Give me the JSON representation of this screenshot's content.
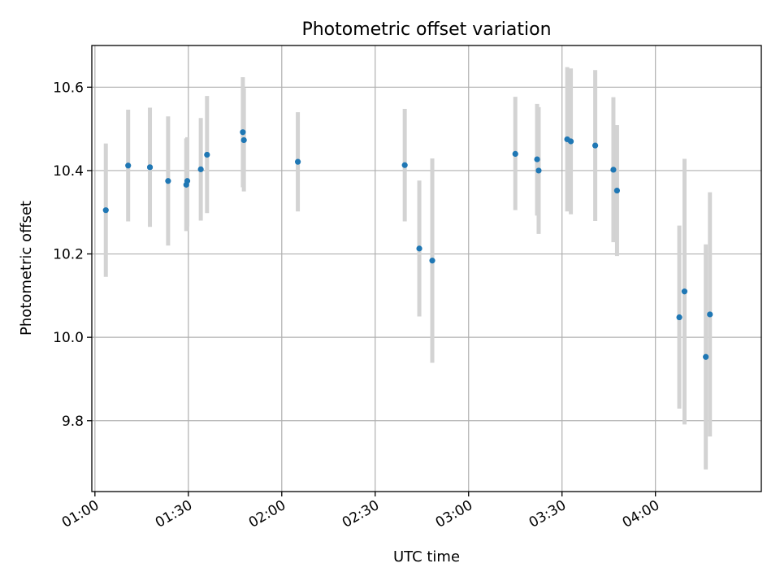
{
  "chart_data": {
    "type": "scatter",
    "title": "Photometric offset variation",
    "xlabel": "UTC time",
    "ylabel": "Photometric offset",
    "xlim": [
      "00:59",
      "04:34"
    ],
    "ylim": [
      9.63,
      10.7
    ],
    "grid": true,
    "x_ticks": [
      "01:00",
      "01:30",
      "02:00",
      "02:30",
      "03:00",
      "03:30",
      "04:00"
    ],
    "y_ticks": [
      9.8,
      10.0,
      10.2,
      10.4,
      10.6
    ],
    "colors": {
      "points": "#1f77b4",
      "error_bars": "#d3d3d3"
    },
    "series": [
      {
        "points": [
          {
            "x": "01:03:30",
            "y": 10.305,
            "ylo": 10.145,
            "yhi": 10.465
          },
          {
            "x": "01:10:40",
            "y": 10.412,
            "ylo": 10.278,
            "yhi": 10.546
          },
          {
            "x": "01:17:40",
            "y": 10.408,
            "ylo": 10.265,
            "yhi": 10.551
          },
          {
            "x": "01:23:30",
            "y": 10.375,
            "ylo": 10.22,
            "yhi": 10.53
          },
          {
            "x": "01:29:20",
            "y": 10.366,
            "ylo": 10.255,
            "yhi": 10.477
          },
          {
            "x": "01:29:40",
            "y": 10.375,
            "ylo": 10.266,
            "yhi": 10.48
          },
          {
            "x": "01:34:00",
            "y": 10.403,
            "ylo": 10.28,
            "yhi": 10.526
          },
          {
            "x": "01:36:00",
            "y": 10.438,
            "ylo": 10.298,
            "yhi": 10.579
          },
          {
            "x": "01:47:30",
            "y": 10.492,
            "ylo": 10.36,
            "yhi": 10.624
          },
          {
            "x": "01:47:50",
            "y": 10.473,
            "ylo": 10.35,
            "yhi": 10.598
          },
          {
            "x": "02:05:10",
            "y": 10.421,
            "ylo": 10.302,
            "yhi": 10.54
          },
          {
            "x": "02:39:30",
            "y": 10.413,
            "ylo": 10.278,
            "yhi": 10.548
          },
          {
            "x": "02:44:10",
            "y": 10.213,
            "ylo": 10.05,
            "yhi": 10.376
          },
          {
            "x": "02:48:20",
            "y": 10.184,
            "ylo": 9.939,
            "yhi": 10.429
          },
          {
            "x": "03:15:00",
            "y": 10.44,
            "ylo": 10.305,
            "yhi": 10.577
          },
          {
            "x": "03:22:00",
            "y": 10.427,
            "ylo": 10.292,
            "yhi": 10.56
          },
          {
            "x": "03:22:30",
            "y": 10.4,
            "ylo": 10.248,
            "yhi": 10.552
          },
          {
            "x": "03:31:40",
            "y": 10.475,
            "ylo": 10.302,
            "yhi": 10.648
          },
          {
            "x": "03:32:50",
            "y": 10.47,
            "ylo": 10.295,
            "yhi": 10.645
          },
          {
            "x": "03:40:40",
            "y": 10.46,
            "ylo": 10.279,
            "yhi": 10.641
          },
          {
            "x": "03:46:30",
            "y": 10.402,
            "ylo": 10.228,
            "yhi": 10.576
          },
          {
            "x": "03:47:40",
            "y": 10.352,
            "ylo": 10.195,
            "yhi": 10.509
          },
          {
            "x": "04:07:40",
            "y": 10.048,
            "ylo": 9.829,
            "yhi": 10.268
          },
          {
            "x": "04:09:20",
            "y": 10.11,
            "ylo": 9.791,
            "yhi": 10.428
          },
          {
            "x": "04:16:10",
            "y": 9.953,
            "ylo": 9.683,
            "yhi": 10.223
          },
          {
            "x": "04:17:30",
            "y": 10.055,
            "ylo": 9.762,
            "yhi": 10.348
          }
        ]
      }
    ]
  }
}
